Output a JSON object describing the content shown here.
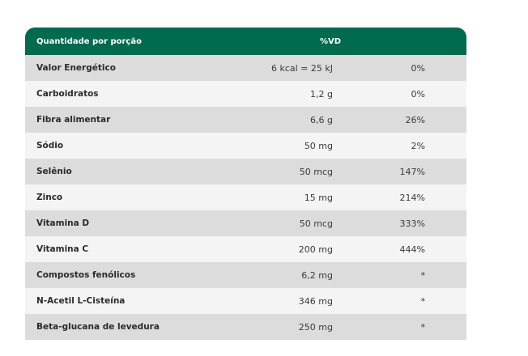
{
  "table": {
    "header": {
      "portion_label": "Quantidade por porção",
      "vd_label": "%VD"
    },
    "rows": [
      {
        "name": "Valor Energético",
        "amount": "6 kcal = 25 kJ",
        "vd": "0%"
      },
      {
        "name": "Carboidratos",
        "amount": "1,2 g",
        "vd": "0%"
      },
      {
        "name": "Fibra alimentar",
        "amount": "6,6 g",
        "vd": "26%"
      },
      {
        "name": "Sódio",
        "amount": "50 mg",
        "vd": "2%"
      },
      {
        "name": "Selênio",
        "amount": "50 mcg",
        "vd": "147%"
      },
      {
        "name": "Zinco",
        "amount": "15 mg",
        "vd": "214%"
      },
      {
        "name": "Vitamina D",
        "amount": "50 mcg",
        "vd": "333%"
      },
      {
        "name": "Vitamina C",
        "amount": "200 mg",
        "vd": "444%"
      },
      {
        "name": "Compostos fenólicos",
        "amount": "6,2 mg",
        "vd": "*"
      },
      {
        "name": "N-Acetil L-Cisteína",
        "amount": "346 mg",
        "vd": "*"
      },
      {
        "name": "Beta-glucana de levedura",
        "amount": "250 mg",
        "vd": "*"
      }
    ]
  },
  "colors": {
    "header_bg": "#006b4f",
    "row_dark": "#dcdcdc",
    "row_light": "#f4f4f4"
  }
}
